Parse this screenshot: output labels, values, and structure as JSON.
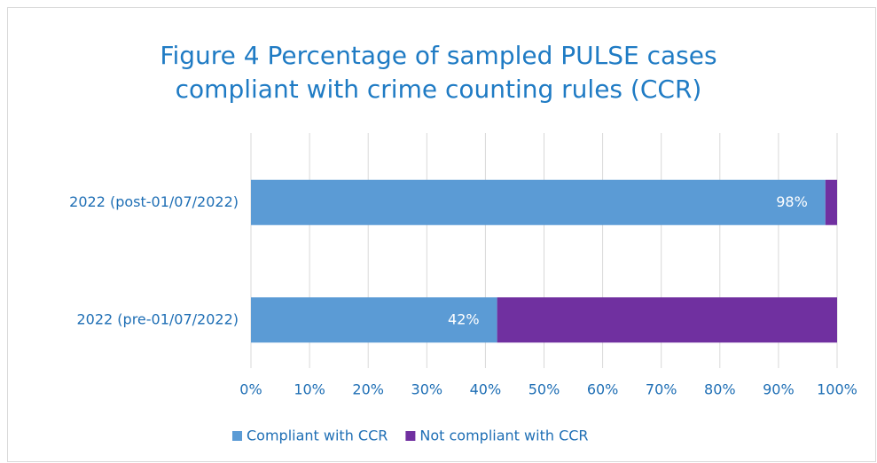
{
  "chart_data": {
    "type": "stacked_barh",
    "title": "Figure 4 Percentage of sampled PULSE cases compliant with crime counting rules (CCR)",
    "categories": [
      "2022 (post-01/07/2022)",
      "2022 (pre-01/07/2022)"
    ],
    "series": [
      {
        "name": "Compliant with CCR",
        "color": "#5b9bd5",
        "values": [
          98,
          42
        ],
        "value_labels": [
          "98%",
          "42%"
        ]
      },
      {
        "name": "Not compliant with CCR",
        "color": "#7030a0",
        "values": [
          2,
          58
        ]
      }
    ],
    "xlim": [
      0,
      100
    ],
    "xticks": [
      {
        "value": 0,
        "label": "0%"
      },
      {
        "value": 10,
        "label": "10%"
      },
      {
        "value": 20,
        "label": "20%"
      },
      {
        "value": 30,
        "label": "30%"
      },
      {
        "value": 40,
        "label": "40%"
      },
      {
        "value": 50,
        "label": "50%"
      },
      {
        "value": 60,
        "label": "60%"
      },
      {
        "value": 70,
        "label": "70%"
      },
      {
        "value": 80,
        "label": "80%"
      },
      {
        "value": 90,
        "label": "90%"
      },
      {
        "value": 100,
        "label": "100%"
      }
    ],
    "grid": true,
    "legend": "bottom"
  }
}
